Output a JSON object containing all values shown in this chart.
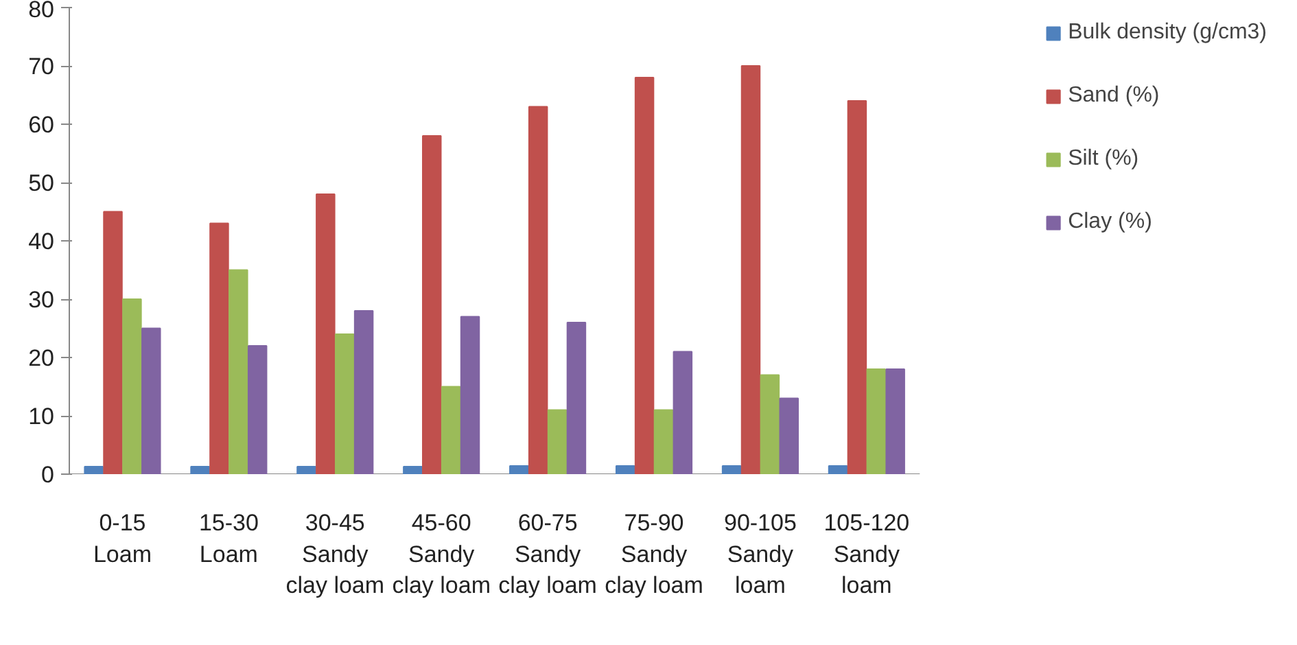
{
  "chart_data": {
    "type": "bar",
    "categories": [
      "0-15\nLoam",
      "15-30\nLoam",
      "30-45\nSandy\nclay loam",
      "45-60\nSandy\nclay loam",
      "60-75\nSandy\nclay loam",
      "75-90\nSandy\nclay loam",
      "90-105\nSandy\nloam",
      "105-120\nSandy\nloam"
    ],
    "series": [
      {
        "name": "Bulk density (g/cm3)",
        "color": "#4f81bd",
        "values": [
          1.3,
          1.3,
          1.3,
          1.3,
          1.4,
          1.4,
          1.4,
          1.4
        ]
      },
      {
        "name": "Sand (%)",
        "color": "#c0504d",
        "values": [
          45,
          43,
          48,
          58,
          63,
          68,
          70,
          64
        ]
      },
      {
        "name": "Silt (%)",
        "color": "#9bbb59",
        "values": [
          30,
          35,
          24,
          15,
          11,
          11,
          17,
          18
        ]
      },
      {
        "name": "Clay (%)",
        "color": "#8064a2",
        "values": [
          25,
          22,
          28,
          27,
          26,
          21,
          13,
          18
        ]
      }
    ],
    "ylim": [
      0,
      80
    ],
    "yticks": [
      0,
      10,
      20,
      30,
      40,
      50,
      60,
      70,
      80
    ],
    "grid": false,
    "legend": "right"
  }
}
